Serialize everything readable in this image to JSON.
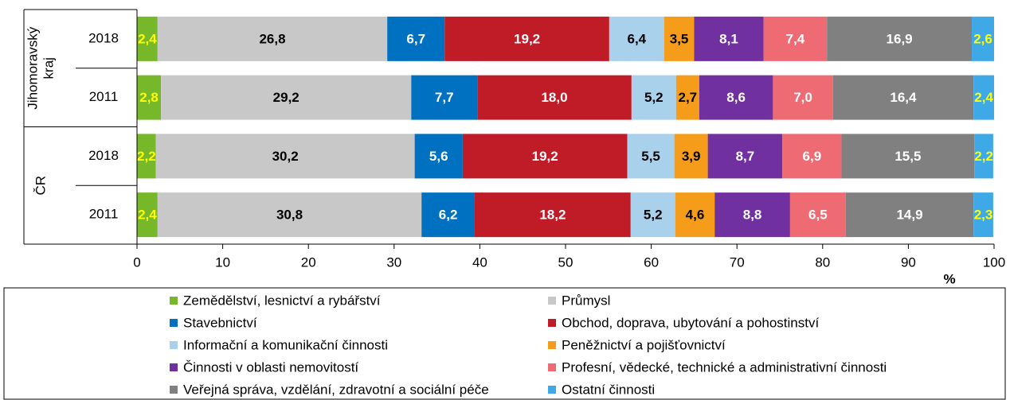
{
  "chart_data": {
    "type": "stacked-bar-horizontal",
    "groups": [
      {
        "lines": [
          "Jihomoravský",
          "kraj"
        ]
      },
      {
        "lines": [
          "ČR"
        ]
      }
    ],
    "categories": [
      "2018",
      "2011",
      "2018",
      "2011"
    ],
    "xlabel": "%",
    "xlim": [
      0,
      100
    ],
    "xticks": [
      0,
      10,
      20,
      30,
      40,
      50,
      60,
      70,
      80,
      90,
      100
    ],
    "series": [
      {
        "name": "Zemědělství, lesnictví a rybářství",
        "color": "#76b82a",
        "label_color": "#ffff00",
        "values": [
          2.4,
          2.8,
          2.2,
          2.4
        ],
        "value_labels": [
          "2,4",
          "2,8",
          "2,2",
          "2,4"
        ]
      },
      {
        "name": "Průmysl",
        "color": "#c8c8c8",
        "label_color": "#000000",
        "values": [
          26.8,
          29.2,
          30.2,
          30.8
        ],
        "value_labels": [
          "26,8",
          "29,2",
          "30,2",
          "30,8"
        ]
      },
      {
        "name": "Stavebnictví",
        "color": "#0070c0",
        "label_color": "#ffffff",
        "values": [
          6.7,
          7.7,
          5.6,
          6.2
        ],
        "value_labels": [
          "6,7",
          "7,7",
          "5,6",
          "6,2"
        ]
      },
      {
        "name": "Obchod, doprava, ubytování a pohostinství",
        "color": "#c01c28",
        "label_color": "#ffffff",
        "values": [
          19.2,
          18.0,
          19.2,
          18.2
        ],
        "value_labels": [
          "19,2",
          "18,0",
          "19,2",
          "18,2"
        ]
      },
      {
        "name": "Informační a komunikační činnosti",
        "color": "#a9d1ec",
        "label_color": "#000000",
        "values": [
          6.4,
          5.2,
          5.5,
          5.2
        ],
        "value_labels": [
          "6,4",
          "5,2",
          "5,5",
          "5,2"
        ]
      },
      {
        "name": "Peněžnictví a pojišťovnictví",
        "color": "#f59c1a",
        "label_color": "#000000",
        "values": [
          3.5,
          2.7,
          3.9,
          4.6
        ],
        "value_labels": [
          "3,5",
          "2,7",
          "3,9",
          "4,6"
        ]
      },
      {
        "name": "Činnosti v oblasti nemovitostí",
        "color": "#7030a0",
        "label_color": "#ffffff",
        "values": [
          8.1,
          8.6,
          8.7,
          8.8
        ],
        "value_labels": [
          "8,1",
          "8,6",
          "8,7",
          "8,8"
        ]
      },
      {
        "name": "Profesní, vědecké, technické a administrativní činnosti",
        "color": "#ee6b74",
        "label_color": "#ffffff",
        "values": [
          7.4,
          7.0,
          6.9,
          6.5
        ],
        "value_labels": [
          "7,4",
          "7,0",
          "6,9",
          "6,5"
        ]
      },
      {
        "name": "Veřejná správa, vzdělání, zdravotní a sociální péče",
        "color": "#808080",
        "label_color": "#ffffff",
        "values": [
          16.9,
          16.4,
          15.5,
          14.9
        ],
        "value_labels": [
          "16,9",
          "16,4",
          "15,5",
          "14,9"
        ]
      },
      {
        "name": "Ostatní činnosti",
        "color": "#3fa9e8",
        "label_color": "#ffff00",
        "values": [
          2.6,
          2.4,
          2.2,
          2.3
        ],
        "value_labels": [
          "2,6",
          "2,4",
          "2,2",
          "2,3"
        ]
      }
    ]
  }
}
